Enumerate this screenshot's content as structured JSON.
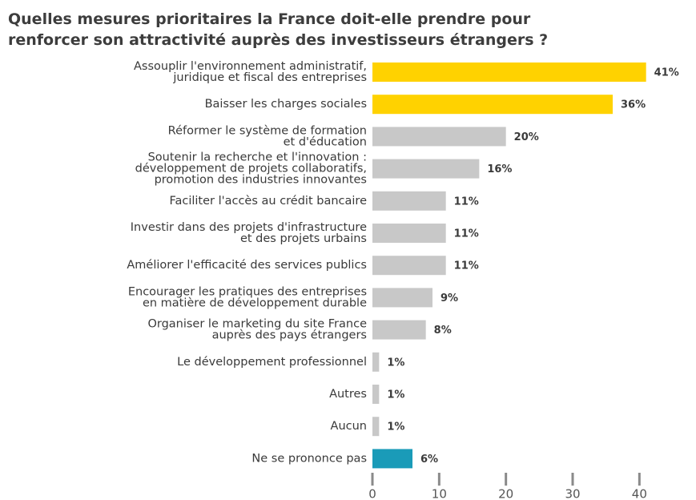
{
  "chart_data": {
    "type": "barh",
    "title": "Quelles mesures prioritaires la France doit-elle prendre pour\nrenforcer son attractivité auprès des investisseurs étrangers ?",
    "categories": [
      "Assouplir l'environnement administratif,\njuridique et fiscal des entreprises",
      "Baisser les charges sociales",
      "Réformer le système de formation\net d'éducation",
      "Soutenir la recherche et l'innovation :\ndéveloppement de projets collaboratifs,\npromotion des industries innovantes",
      "Faciliter l'accès au crédit bancaire",
      "Investir dans des projets d'infrastructure\net des projets urbains",
      "Améliorer l'efficacité des services publics",
      "Encourager les pratiques des entreprises\nen matière de développement durable",
      "Organiser le marketing du site France\nauprès des pays étrangers",
      "Le développement professionnel",
      "Autres",
      "Aucun",
      "Ne se prononce pas"
    ],
    "values": [
      41,
      36,
      20,
      16,
      11,
      11,
      11,
      9,
      8,
      1,
      1,
      1,
      6
    ],
    "value_labels": [
      "41%",
      "36%",
      "20%",
      "16%",
      "11%",
      "11%",
      "11%",
      "9%",
      "8%",
      "1%",
      "1%",
      "1%",
      "6%"
    ],
    "colors": [
      "#ffd200",
      "#ffd200",
      "#c8c8c8",
      "#c8c8c8",
      "#c8c8c8",
      "#c8c8c8",
      "#c8c8c8",
      "#c8c8c8",
      "#c8c8c8",
      "#c8c8c8",
      "#c8c8c8",
      "#c8c8c8",
      "#1a9bb8"
    ],
    "xlim": [
      0,
      42
    ],
    "xticks": [
      0,
      10,
      20,
      30,
      40
    ]
  }
}
